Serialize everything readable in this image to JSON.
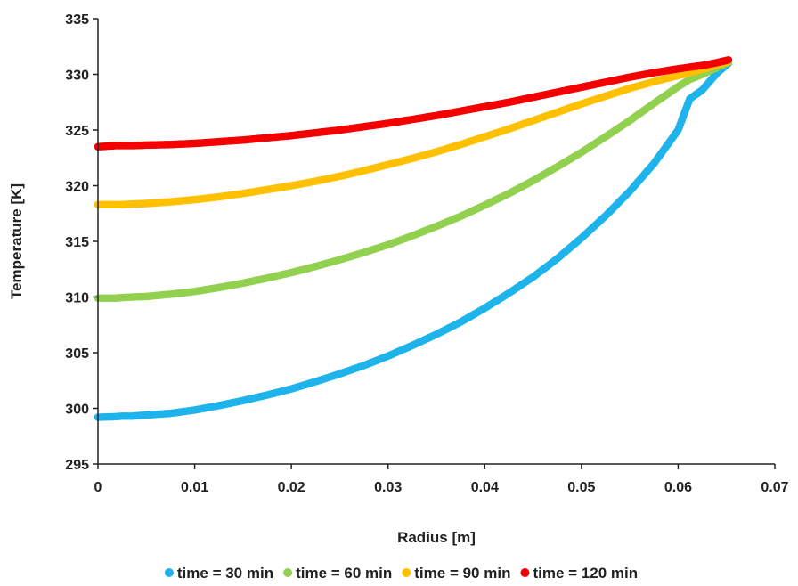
{
  "chart_data": {
    "type": "scatter",
    "title": "",
    "xlabel": "Radius [m]",
    "ylabel": "Temperature [K]",
    "xlim": [
      0,
      0.07
    ],
    "ylim": [
      295,
      335
    ],
    "xticks": [
      0,
      0.01,
      0.02,
      0.03,
      0.04,
      0.05,
      0.06,
      0.07
    ],
    "xtick_labels": [
      "0",
      "0.01",
      "0.02",
      "0.03",
      "0.04",
      "0.05",
      "0.06",
      "0.07"
    ],
    "yticks": [
      295,
      300,
      305,
      310,
      315,
      320,
      325,
      330,
      335
    ],
    "ytick_labels": [
      "295",
      "300",
      "305",
      "310",
      "315",
      "320",
      "325",
      "330",
      "335"
    ],
    "grid": false,
    "legend_position": "bottom",
    "series": [
      {
        "name": "time = 30 min",
        "color": "#1EB4EB",
        "points": [
          [
            0,
            299.2
          ],
          [
            0.0018,
            299.25
          ],
          [
            0.0025,
            299.3
          ],
          [
            0.0035,
            299.3
          ],
          [
            0.005,
            299.4
          ],
          [
            0.0075,
            299.55
          ],
          [
            0.01,
            299.85
          ],
          [
            0.0125,
            300.25
          ],
          [
            0.015,
            300.7
          ],
          [
            0.0175,
            301.2
          ],
          [
            0.02,
            301.75
          ],
          [
            0.0225,
            302.4
          ],
          [
            0.025,
            303.1
          ],
          [
            0.0275,
            303.85
          ],
          [
            0.03,
            304.7
          ],
          [
            0.0325,
            305.65
          ],
          [
            0.035,
            306.65
          ],
          [
            0.0375,
            307.75
          ],
          [
            0.04,
            309.0
          ],
          [
            0.0425,
            310.35
          ],
          [
            0.045,
            311.8
          ],
          [
            0.0475,
            313.45
          ],
          [
            0.05,
            315.3
          ],
          [
            0.0525,
            317.3
          ],
          [
            0.055,
            319.5
          ],
          [
            0.0575,
            322.0
          ],
          [
            0.06,
            325.0
          ],
          [
            0.0612,
            327.8
          ],
          [
            0.0625,
            328.6
          ],
          [
            0.0632,
            329.3
          ],
          [
            0.064,
            330.1
          ],
          [
            0.0652,
            331.0
          ]
        ]
      },
      {
        "name": "time = 60 min",
        "color": "#92D050",
        "points": [
          [
            0,
            309.9
          ],
          [
            0.0018,
            309.9
          ],
          [
            0.0025,
            309.95
          ],
          [
            0.0035,
            310.0
          ],
          [
            0.005,
            310.05
          ],
          [
            0.0075,
            310.25
          ],
          [
            0.01,
            310.5
          ],
          [
            0.0125,
            310.85
          ],
          [
            0.015,
            311.25
          ],
          [
            0.0175,
            311.7
          ],
          [
            0.02,
            312.2
          ],
          [
            0.0225,
            312.75
          ],
          [
            0.025,
            313.35
          ],
          [
            0.0275,
            314.0
          ],
          [
            0.03,
            314.7
          ],
          [
            0.0325,
            315.5
          ],
          [
            0.035,
            316.35
          ],
          [
            0.0375,
            317.25
          ],
          [
            0.04,
            318.25
          ],
          [
            0.0425,
            319.3
          ],
          [
            0.045,
            320.45
          ],
          [
            0.0475,
            321.7
          ],
          [
            0.05,
            323.0
          ],
          [
            0.0525,
            324.4
          ],
          [
            0.055,
            325.85
          ],
          [
            0.0575,
            327.4
          ],
          [
            0.06,
            328.9
          ],
          [
            0.0612,
            329.55
          ],
          [
            0.0625,
            330.0
          ],
          [
            0.064,
            330.6
          ],
          [
            0.0652,
            331.1
          ]
        ]
      },
      {
        "name": "time = 90 min",
        "color": "#FFC000",
        "points": [
          [
            0,
            318.3
          ],
          [
            0.0018,
            318.3
          ],
          [
            0.0025,
            318.3
          ],
          [
            0.0035,
            318.35
          ],
          [
            0.005,
            318.4
          ],
          [
            0.0075,
            318.55
          ],
          [
            0.01,
            318.75
          ],
          [
            0.0125,
            319.0
          ],
          [
            0.015,
            319.3
          ],
          [
            0.0175,
            319.65
          ],
          [
            0.02,
            320.0
          ],
          [
            0.0225,
            320.4
          ],
          [
            0.025,
            320.85
          ],
          [
            0.0275,
            321.35
          ],
          [
            0.03,
            321.9
          ],
          [
            0.0325,
            322.45
          ],
          [
            0.035,
            323.05
          ],
          [
            0.0375,
            323.7
          ],
          [
            0.04,
            324.4
          ],
          [
            0.0425,
            325.1
          ],
          [
            0.045,
            325.85
          ],
          [
            0.0475,
            326.6
          ],
          [
            0.05,
            327.35
          ],
          [
            0.0525,
            328.05
          ],
          [
            0.055,
            328.75
          ],
          [
            0.0575,
            329.35
          ],
          [
            0.06,
            329.9
          ],
          [
            0.0612,
            330.15
          ],
          [
            0.0625,
            330.45
          ],
          [
            0.064,
            330.85
          ],
          [
            0.0652,
            331.15
          ]
        ]
      },
      {
        "name": "time = 120 min",
        "color": "#F40000",
        "points": [
          [
            0,
            323.5
          ],
          [
            0.0018,
            323.6
          ],
          [
            0.0025,
            323.6
          ],
          [
            0.0035,
            323.6
          ],
          [
            0.005,
            323.65
          ],
          [
            0.0075,
            323.7
          ],
          [
            0.01,
            323.8
          ],
          [
            0.0125,
            323.95
          ],
          [
            0.015,
            324.1
          ],
          [
            0.0175,
            324.3
          ],
          [
            0.02,
            324.5
          ],
          [
            0.0225,
            324.75
          ],
          [
            0.025,
            325.0
          ],
          [
            0.0275,
            325.3
          ],
          [
            0.03,
            325.6
          ],
          [
            0.0325,
            325.95
          ],
          [
            0.035,
            326.3
          ],
          [
            0.0375,
            326.7
          ],
          [
            0.04,
            327.1
          ],
          [
            0.0425,
            327.5
          ],
          [
            0.045,
            327.95
          ],
          [
            0.0475,
            328.4
          ],
          [
            0.05,
            328.85
          ],
          [
            0.0525,
            329.3
          ],
          [
            0.055,
            329.75
          ],
          [
            0.0575,
            330.15
          ],
          [
            0.06,
            330.5
          ],
          [
            0.0612,
            330.65
          ],
          [
            0.0625,
            330.8
          ],
          [
            0.064,
            331.05
          ],
          [
            0.0652,
            331.3
          ]
        ]
      }
    ]
  }
}
